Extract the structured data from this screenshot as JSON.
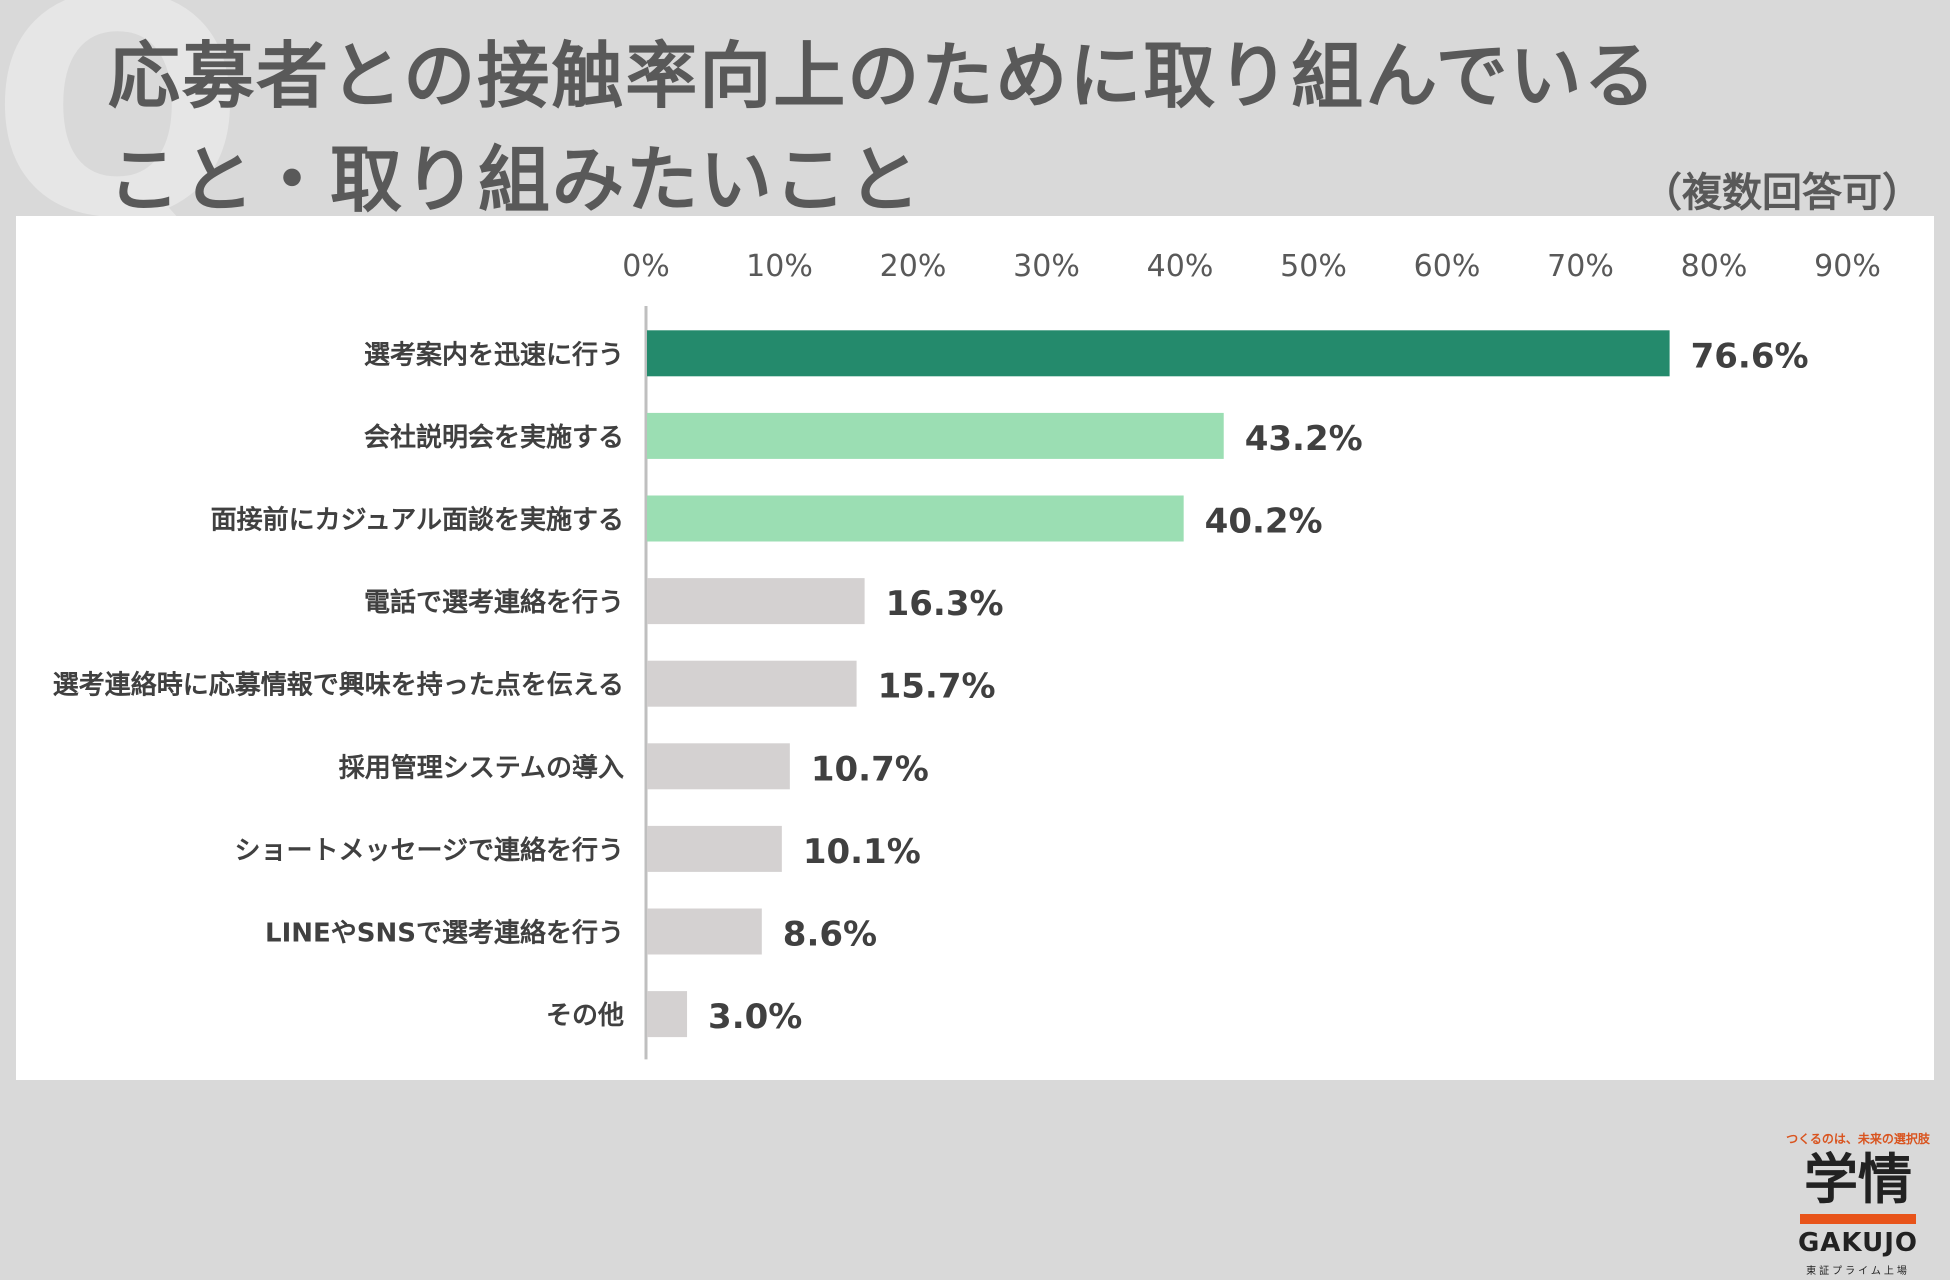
{
  "title": {
    "line1": "応募者との接触率向上のために取り組んでいる",
    "line2": "こと・取り組みたいこと",
    "note": "（複数回答可）",
    "watermark": "Q"
  },
  "logo": {
    "tagline": "つくるのは、未来の選択肢",
    "kanji": "学情",
    "english": "GAKUJO",
    "exchange": "東証プライム上場"
  },
  "colors": {
    "highlight_dark": "#248a6c",
    "highlight_light": "#9bdeb3",
    "neutral": "#d4d1d1",
    "axis": "#bfbfbf"
  },
  "chart_data": {
    "type": "bar",
    "orientation": "horizontal",
    "title": "",
    "xlabel": "",
    "ylabel": "",
    "xlim": [
      0,
      90
    ],
    "ticks": [
      "0%",
      "10%",
      "20%",
      "30%",
      "40%",
      "50%",
      "60%",
      "70%",
      "80%",
      "90%"
    ],
    "grid": false,
    "categories": [
      "選考案内を迅速に行う",
      "会社説明会を実施する",
      "面接前にカジュアル面談を実施する",
      "電話で選考連絡を行う",
      "選考連絡時に応募情報で興味を持った点を伝える",
      "採用管理システムの導入",
      "ショートメッセージで連絡を行う",
      "LINEやSNSで選考連絡を行う",
      "その他"
    ],
    "values": [
      76.6,
      43.2,
      40.2,
      16.3,
      15.7,
      10.7,
      10.1,
      8.6,
      3.0
    ],
    "value_labels": [
      "76.6%",
      "43.2%",
      "40.2%",
      "16.3%",
      "15.7%",
      "10.7%",
      "10.1%",
      "8.6%",
      "3.0%"
    ],
    "bar_colors": [
      "#248a6c",
      "#9bdeb3",
      "#9bdeb3",
      "#d4d1d1",
      "#d4d1d1",
      "#d4d1d1",
      "#d4d1d1",
      "#d4d1d1",
      "#d4d1d1"
    ]
  }
}
